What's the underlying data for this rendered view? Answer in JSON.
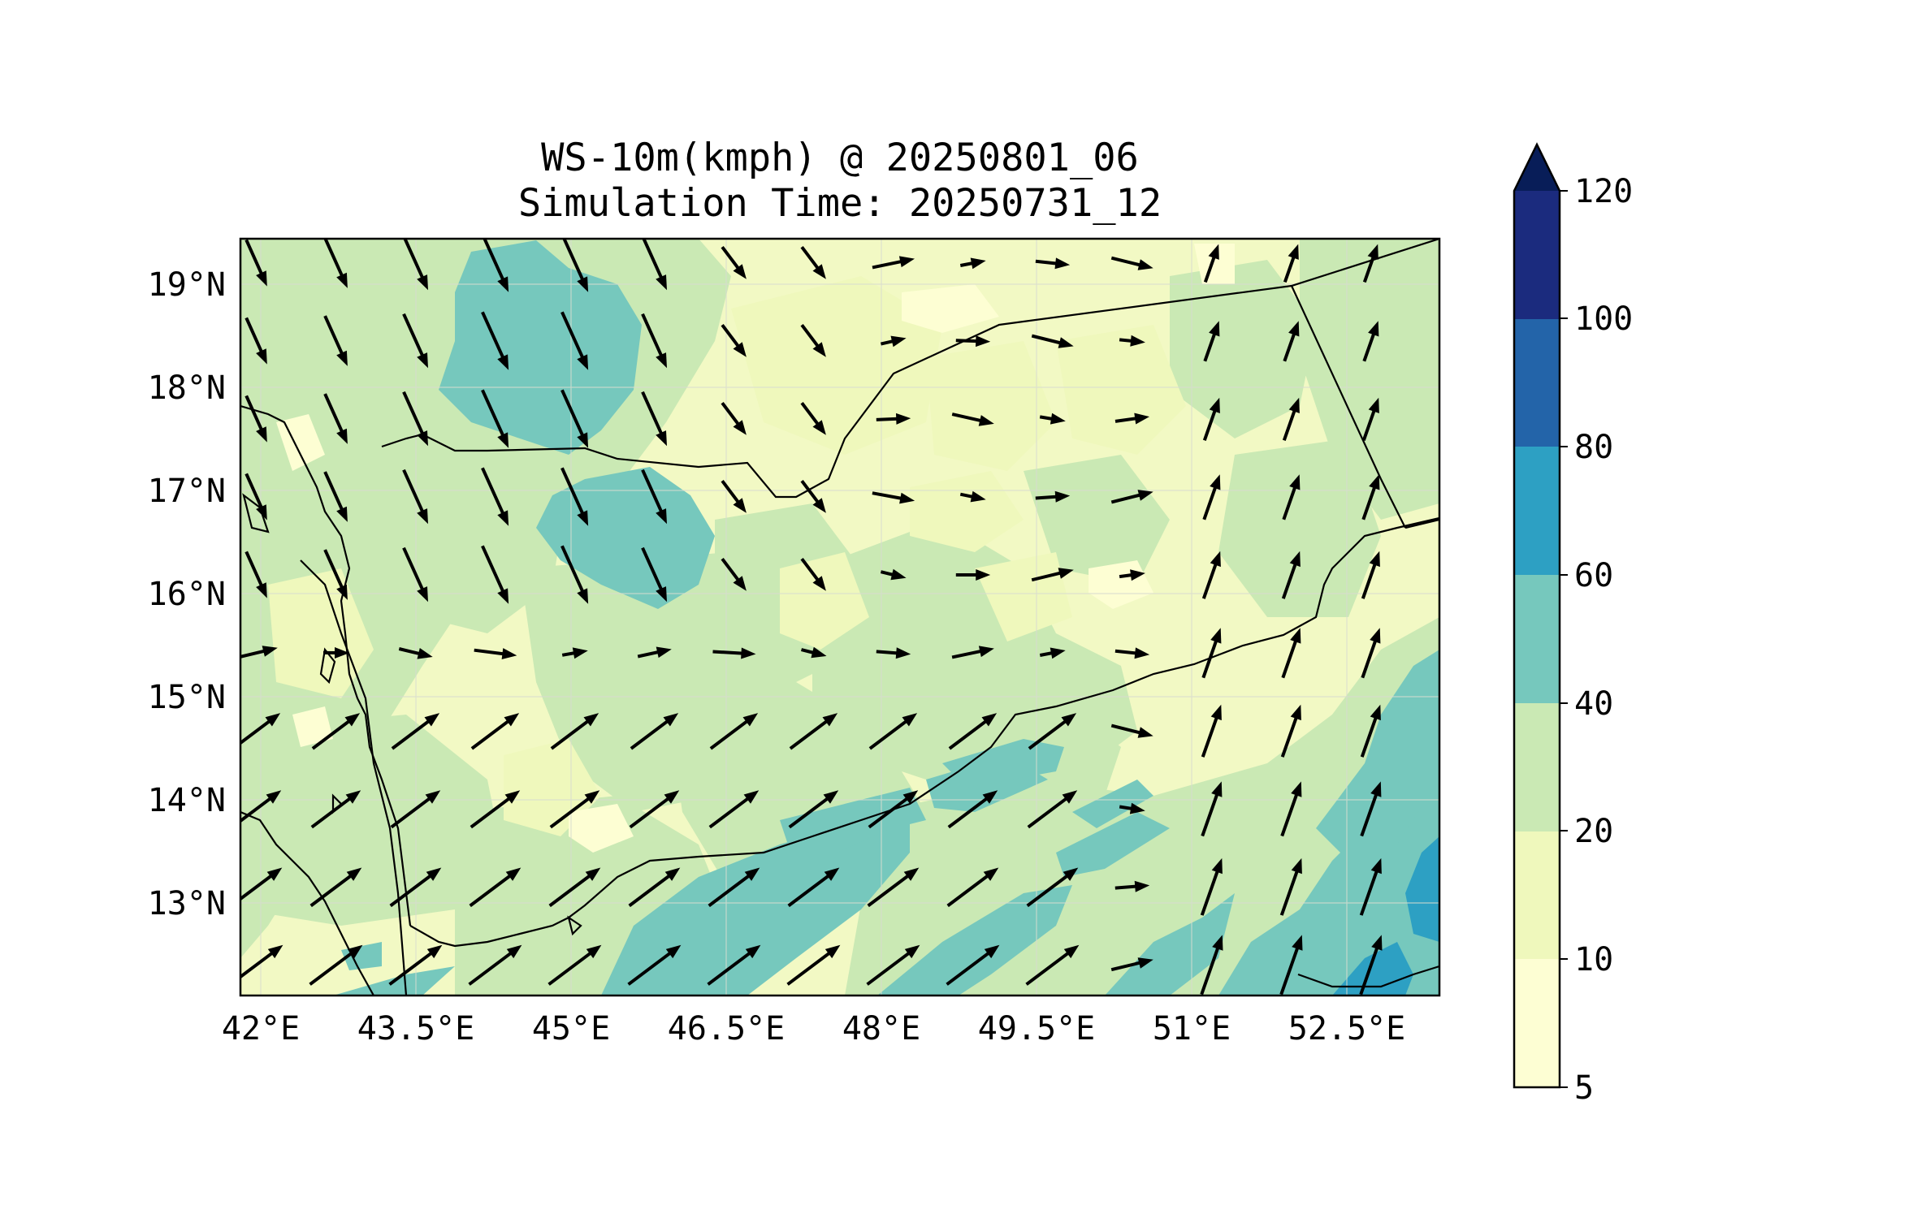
{
  "title": {
    "line1": "WS-10m(kmph) @ 20250801_06",
    "line2": "Simulation Time: 20250731_12"
  },
  "map": {
    "lon_range": [
      41.8,
      53.4
    ],
    "lat_range": [
      12.1,
      19.45
    ],
    "lon_ticks": [
      "42°E",
      "43.5°E",
      "45°E",
      "46.5°E",
      "48°E",
      "49.5°E",
      "51°E",
      "52.5°E"
    ],
    "lat_ticks": [
      "19°N",
      "18°N",
      "17°N",
      "16°N",
      "15°N",
      "14°N",
      "13°N"
    ],
    "grid": true,
    "background_color": "#f2f9c4",
    "boundary_color": "#000000"
  },
  "colorbar": {
    "levels": [
      "5",
      "10",
      "20",
      "40",
      "60",
      "80",
      "100",
      "120"
    ],
    "colors": [
      "#fdfed3",
      "#eff8bc",
      "#cae9b4",
      "#76c8bd",
      "#2da0c3",
      "#2364a9",
      "#1b2b7e"
    ],
    "extend_color": "#081d58",
    "extend": "max"
  },
  "wind_field": {
    "description_units": "kmph",
    "arrow_color": "#000000"
  }
}
